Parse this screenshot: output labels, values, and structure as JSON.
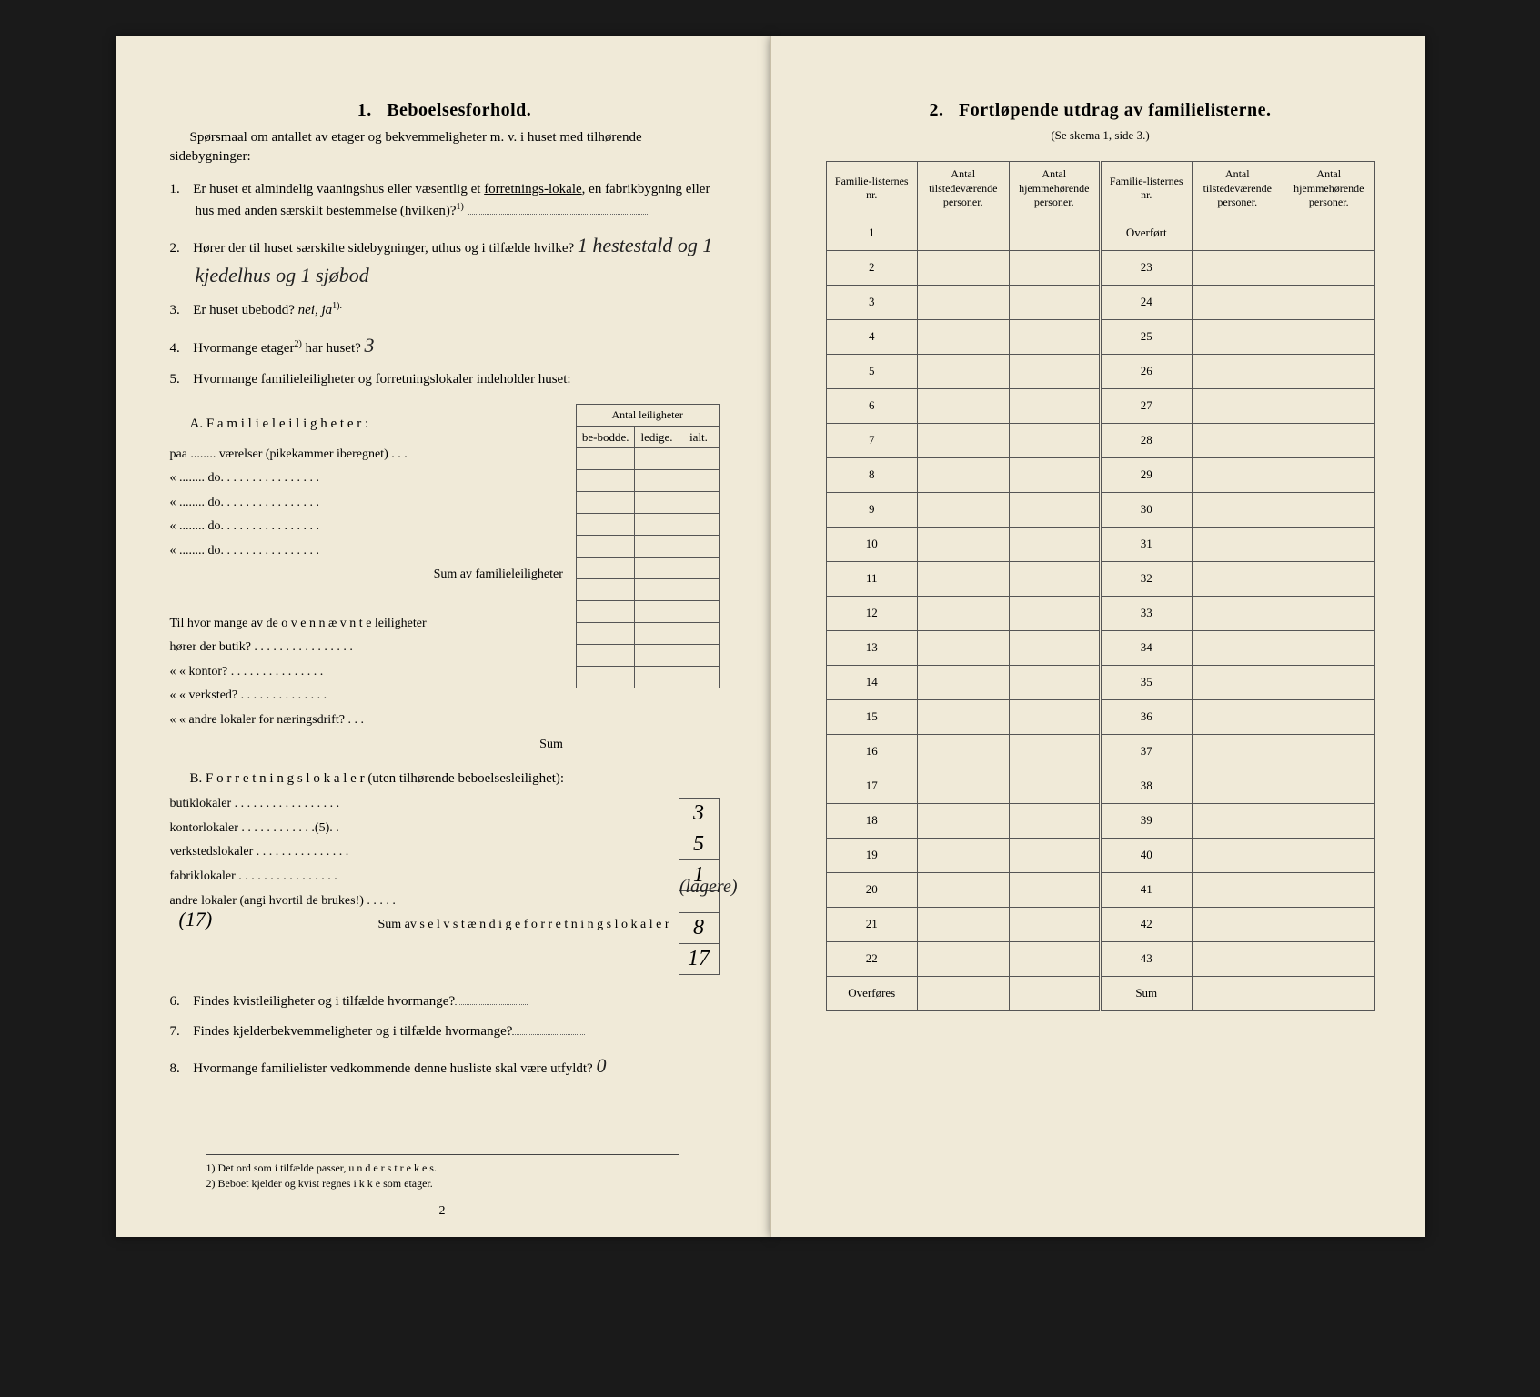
{
  "left": {
    "section_number": "1.",
    "section_title": "Beboelsesforhold.",
    "intro": "Spørsmaal om antallet av etager og bekvemmeligheter m. v. i huset med tilhørende sidebygninger:",
    "q1": {
      "num": "1.",
      "text_a": "Er huset et almindelig vaaningshus eller væsentlig et ",
      "underlined": "forretnings-lokale",
      "text_b": ", en fabrikbygning eller hus med anden særskilt bestemmelse (hvilken)?",
      "sup": "1)"
    },
    "q2": {
      "num": "2.",
      "text": "Hører der til huset særskilte sidebygninger, uthus og i tilfælde hvilke?",
      "answer": "1 hestestald og 1 kjedelhus og 1 sjøbod"
    },
    "q3": {
      "num": "3.",
      "text": "Er huset ubebodd?",
      "options": "nei,  ja",
      "sup": "1)."
    },
    "q4": {
      "num": "4.",
      "text": "Hvormange etager",
      "sup": "2)",
      "text_b": " har huset?",
      "answer": "3"
    },
    "q5": {
      "num": "5.",
      "text": "Hvormange familieleiligheter og forretningslokaler indeholder huset:"
    },
    "leil_header_top": "Antal leiligheter",
    "leil_headers": [
      "be-bodde.",
      "ledige.",
      "ialt."
    ],
    "sectionA": {
      "label": "A. F a m i l i e l e i l i g h e t e r :",
      "lines": [
        "paa ........ værelser (pikekammer iberegnet) . . .",
        "«  ........      do.      . . . . . . . . . . . . . . .",
        "«  ........      do.      . . . . . . . . . . . . . . .",
        "«  ........      do.      . . . . . . . . . . . . . . .",
        "«  ........      do.      . . . . . . . . . . . . . . ."
      ],
      "sum_label": "Sum av familieleiligheter",
      "extra_label": "Til hvor mange av de o v e n n æ v n t e leiligheter",
      "extra_lines": [
        "hører der butik? . . . . . . . . . . . . . . . .",
        "«    «   kontor? . . . . . . . . . . . . . . .",
        "«    «   verksted? . . . . . . . . . . . . . .",
        "«    «   andre lokaler for næringsdrift? . . ."
      ],
      "sum2_label": "Sum"
    },
    "sectionB": {
      "label": "B. F o r r e t n i n g s l o k a l e r  (uten tilhørende beboelsesleilighet):",
      "rows": [
        {
          "label": "butiklokaler . . . . . . . . . . . . . . . . .",
          "value": "3"
        },
        {
          "label": "kontorlokaler . . . . . . . . . . . .(5). .",
          "value": "5"
        },
        {
          "label": "verkstedslokaler . . . . . . . . . . . . . . .",
          "value": "1"
        },
        {
          "label": "fabriklokaler . . . . . . . . . . . . . . . .",
          "value": ""
        },
        {
          "label": "andre lokaler (angi hvortil de brukes!) . . . . .",
          "value": "8",
          "note": "(lagere)"
        }
      ],
      "sum_label": "Sum av s e l v s t æ n d i g e  f o r r e t n i n g s l o k a l e r",
      "sum_value": "17",
      "margin_note": "(17)"
    },
    "q6": {
      "num": "6.",
      "text": "Findes kvistleiligheter og i tilfælde hvormange?",
      "dots": "............"
    },
    "q7": {
      "num": "7.",
      "text": "Findes kjelderbekvemmeligheter og i tilfælde hvormange?",
      "dots": "........"
    },
    "q8": {
      "num": "8.",
      "text": "Hvormange familielister vedkommende denne husliste skal være utfyldt?",
      "answer": "0"
    },
    "footnotes": [
      "1)  Det ord som i tilfælde passer, u n d e r s t r e k e s.",
      "2)  Beboet kjelder og kvist regnes i k k e som etager."
    ],
    "page_num": "2"
  },
  "right": {
    "section_number": "2.",
    "section_title": "Fortløpende utdrag av familielisterne.",
    "subtitle": "(Se skema 1, side 3.)",
    "headers": [
      "Familie-listernes nr.",
      "Antal tilstedeværende personer.",
      "Antal hjemmehørende personer.",
      "Familie-listernes nr.",
      "Antal tilstedeværende personer.",
      "Antal hjemmehørende personer."
    ],
    "left_rows": [
      "1",
      "2",
      "3",
      "4",
      "5",
      "6",
      "7",
      "8",
      "9",
      "10",
      "11",
      "12",
      "13",
      "14",
      "15",
      "16",
      "17",
      "18",
      "19",
      "20",
      "21",
      "22",
      "Overføres"
    ],
    "right_rows": [
      "Overført",
      "23",
      "24",
      "25",
      "26",
      "27",
      "28",
      "29",
      "30",
      "31",
      "32",
      "33",
      "34",
      "35",
      "36",
      "37",
      "38",
      "39",
      "40",
      "41",
      "42",
      "43",
      "Sum"
    ]
  },
  "colors": {
    "page_bg": "#f0ead8",
    "outer_bg": "#1a1a1a",
    "border": "#555555",
    "text": "#1a1a1a"
  }
}
